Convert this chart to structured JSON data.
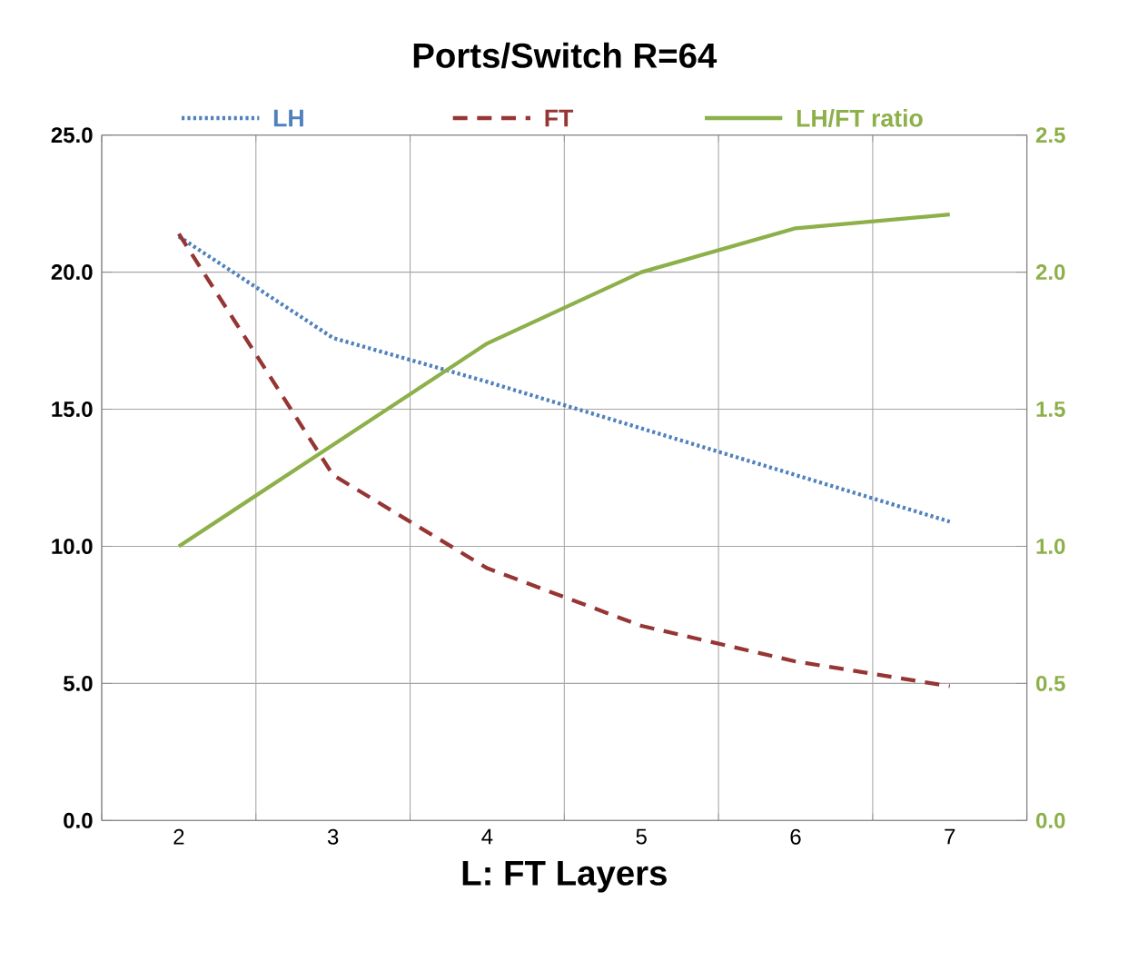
{
  "chart_data": {
    "type": "line",
    "title": "Ports/Switch   R=64",
    "xlabel": "L: FT Layers",
    "categories": [
      "2",
      "3",
      "4",
      "5",
      "6",
      "7"
    ],
    "series": [
      {
        "name": "LH",
        "color": "#4f81bd",
        "line_style": "dotted",
        "values": [
          21.3,
          17.6,
          16.0,
          14.3,
          12.6,
          10.9
        ]
      },
      {
        "name": "FT",
        "color": "#963634",
        "line_style": "dashed",
        "values": [
          21.4,
          12.6,
          9.2,
          7.1,
          5.8,
          4.9
        ]
      },
      {
        "name": "LH/FT ratio",
        "color": "#8db04a",
        "line_style": "solid",
        "axis": "y2",
        "values": [
          1.0,
          1.37,
          1.74,
          2.0,
          2.16,
          2.21
        ]
      }
    ],
    "ylim": [
      0,
      25
    ],
    "yticks": [
      {
        "value": 0,
        "label": "0.0"
      },
      {
        "value": 5,
        "label": "5.0"
      },
      {
        "value": 10,
        "label": "10.0"
      },
      {
        "value": 15,
        "label": "15.0"
      },
      {
        "value": 20,
        "label": "20.0"
      },
      {
        "value": 25,
        "label": "25.0"
      }
    ],
    "y2lim": [
      0,
      2.5
    ],
    "y2ticks": [
      {
        "value": 0,
        "label": "0.0"
      },
      {
        "value": 0.5,
        "label": "0.5"
      },
      {
        "value": 1,
        "label": "1.0"
      },
      {
        "value": 1.5,
        "label": "1.5"
      },
      {
        "value": 2,
        "label": "2.0"
      },
      {
        "value": 2.5,
        "label": "2.5"
      }
    ],
    "grid": true,
    "legend": "top",
    "marker": "none"
  }
}
